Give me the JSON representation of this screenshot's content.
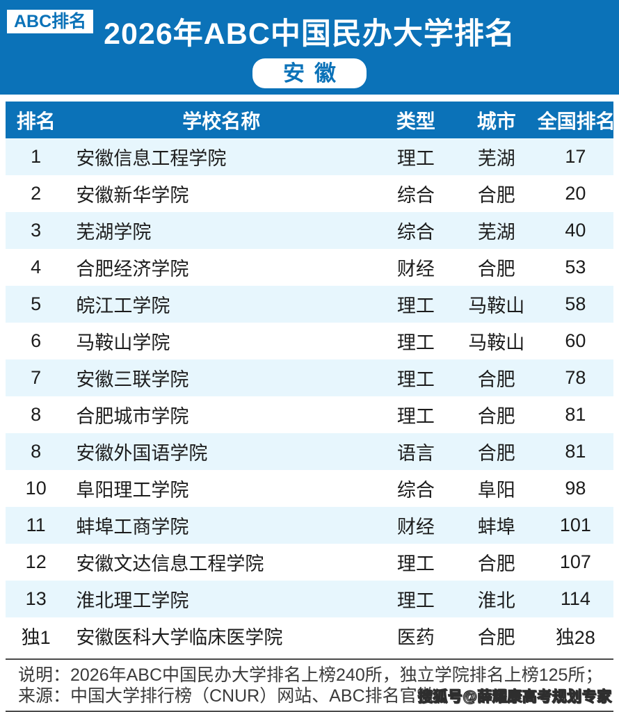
{
  "header": {
    "badge": "ABC排名",
    "title": "2026年ABC中国民办大学排名",
    "region": "安徽"
  },
  "table": {
    "headers": [
      "排名",
      "学校名称",
      "类型",
      "城市",
      "全国排名"
    ],
    "rows": [
      {
        "rank": "1",
        "school": "安徽信息工程学院",
        "type": "理工",
        "city": "芜湖",
        "national_rank": "17"
      },
      {
        "rank": "2",
        "school": "安徽新华学院",
        "type": "综合",
        "city": "合肥",
        "national_rank": "20"
      },
      {
        "rank": "3",
        "school": "芜湖学院",
        "type": "综合",
        "city": "芜湖",
        "national_rank": "40"
      },
      {
        "rank": "4",
        "school": "合肥经济学院",
        "type": "财经",
        "city": "合肥",
        "national_rank": "53"
      },
      {
        "rank": "5",
        "school": "皖江工学院",
        "type": "理工",
        "city": "马鞍山",
        "national_rank": "58"
      },
      {
        "rank": "6",
        "school": "马鞍山学院",
        "type": "理工",
        "city": "马鞍山",
        "national_rank": "60"
      },
      {
        "rank": "7",
        "school": "安徽三联学院",
        "type": "理工",
        "city": "合肥",
        "national_rank": "78"
      },
      {
        "rank": "8",
        "school": "合肥城市学院",
        "type": "理工",
        "city": "合肥",
        "national_rank": "81"
      },
      {
        "rank": "8",
        "school": "安徽外国语学院",
        "type": "语言",
        "city": "合肥",
        "national_rank": "81"
      },
      {
        "rank": "10",
        "school": "阜阳理工学院",
        "type": "综合",
        "city": "阜阳",
        "national_rank": "98"
      },
      {
        "rank": "11",
        "school": "蚌埠工商学院",
        "type": "财经",
        "city": "蚌埠",
        "national_rank": "101"
      },
      {
        "rank": "12",
        "school": "安徽文达信息工程学院",
        "type": "理工",
        "city": "合肥",
        "national_rank": "107"
      },
      {
        "rank": "13",
        "school": "淮北理工学院",
        "type": "理工",
        "city": "淮北",
        "national_rank": "114"
      },
      {
        "rank": "独1",
        "school": "安徽医科大学临床医学院",
        "type": "医药",
        "city": "合肥",
        "national_rank": "独28"
      }
    ]
  },
  "footer": {
    "note": "说明：2026年ABC中国民办大学排名上榜240所，独立学院排名上榜125所；",
    "source": "来源：中国大学排行榜（CNUR）网站、ABC排名官微。",
    "watermark": "搜狐号@薛耀康高考规划专家"
  },
  "colors": {
    "primary_blue": "#0B72B8",
    "alt_row_blue": "#E7F6FD",
    "text_dark": "#1C1C1C",
    "footer_text": "#3A3A3A",
    "divider": "#4A4A4A"
  }
}
